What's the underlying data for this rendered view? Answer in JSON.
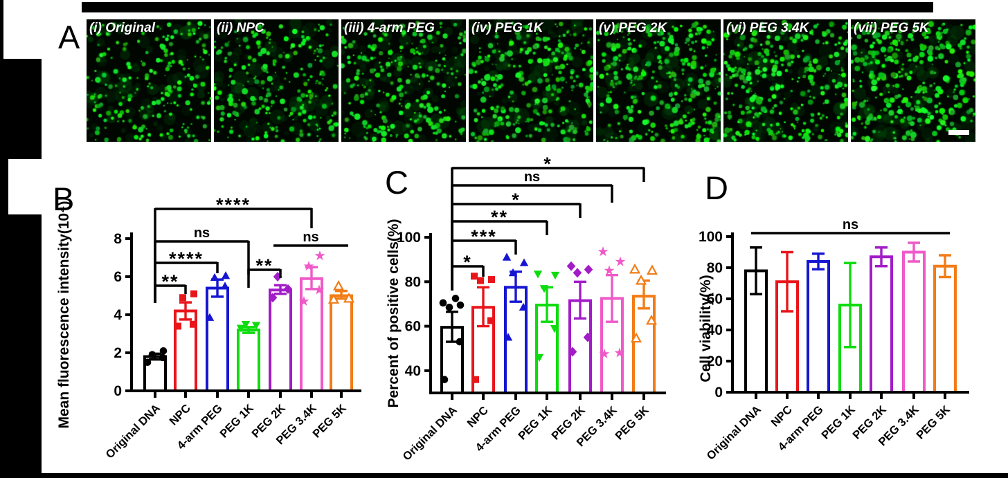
{
  "figure": {
    "panel_letters": {
      "a": "A",
      "b": "B",
      "c": "C",
      "d": "D"
    }
  },
  "panel_a": {
    "images": [
      {
        "label": "(i) Original"
      },
      {
        "label": "(ii) NPC"
      },
      {
        "label": "(iii) 4-arm PEG"
      },
      {
        "label": "(iv) PEG 1K"
      },
      {
        "label": "(v) PEG 2K"
      },
      {
        "label": "(vi) PEG 3.4K"
      },
      {
        "label": "(vii) PEG 5K"
      }
    ],
    "has_scale_bar": true
  },
  "chart_data": [
    {
      "id": "B",
      "type": "bar",
      "ylabel": "Mean fluorescence intensity(10⁴)",
      "categories": [
        "Original DNA",
        "NPC",
        "4-arm PEG",
        "PEG 1K",
        "PEG 2K",
        "PEG 3.4K",
        "PEG 5K"
      ],
      "values": [
        1.8,
        4.2,
        5.4,
        3.2,
        5.3,
        5.9,
        5.0
      ],
      "errors": [
        [
          1.65,
          1.95
        ],
        [
          3.75,
          4.65
        ],
        [
          4.95,
          5.85
        ],
        [
          3.05,
          3.35
        ],
        [
          5.1,
          5.55
        ],
        [
          5.35,
          6.5
        ],
        [
          4.85,
          5.25
        ]
      ],
      "points": [
        [
          1.5,
          1.75,
          1.9,
          2.1
        ],
        [
          3.4,
          3.5,
          4.9,
          5.1
        ],
        [
          3.85,
          5.5,
          5.95,
          6.05
        ],
        [
          3.3,
          3.45,
          3.5
        ],
        [
          4.9,
          5.35,
          6.0
        ],
        [
          4.7,
          5.3,
          6.55,
          7.1
        ],
        [
          4.8,
          4.85,
          5.5
        ]
      ],
      "colors": [
        "#000000",
        "#E8151B",
        "#1616D2",
        "#0EDC0E",
        "#A21CC7",
        "#EF5AC8",
        "#F27C16"
      ],
      "markers": [
        "circle",
        "square",
        "triangle-up",
        "triangle-down",
        "diamond",
        "star",
        "triangle-open"
      ],
      "ylim": [
        0,
        8
      ],
      "yticks": [
        0,
        2,
        4,
        6,
        8
      ],
      "significance": [
        {
          "a": 0,
          "b": 1,
          "label": "**"
        },
        {
          "a": 0,
          "b": 2,
          "label": "****"
        },
        {
          "a": 0,
          "b": 3,
          "label": "ns"
        },
        {
          "a": 0,
          "b": 5,
          "label": "****"
        },
        {
          "a": 3,
          "b": 4,
          "label": "**"
        },
        {
          "a": 4,
          "b": 6,
          "label": "ns"
        }
      ]
    },
    {
      "id": "C",
      "type": "bar",
      "ylabel": "Percent of positive cells(%)",
      "categories": [
        "Original DNA",
        "NPC",
        "4-arm PEG",
        "PEG 1K",
        "PEG 2K",
        "PEG 3.4K",
        "PEG 5K"
      ],
      "values": [
        59.5,
        68.5,
        77.5,
        69.5,
        71.5,
        72.5,
        73.5
      ],
      "errors": [
        [
          53,
          66.5
        ],
        [
          60,
          77.5
        ],
        [
          71,
          84.5
        ],
        [
          62,
          77.5
        ],
        [
          63.5,
          80
        ],
        [
          62,
          83
        ],
        [
          68,
          80.5
        ]
      ],
      "points": [
        [
          36,
          53,
          68.5,
          69.5,
          70.5,
          72.5
        ],
        [
          36,
          62.5,
          80.5,
          81,
          82.5
        ],
        [
          55,
          68.5,
          84,
          88.5,
          91
        ],
        [
          46,
          59,
          77,
          83,
          83.5
        ],
        [
          48.5,
          55,
          84,
          85.5,
          87
        ],
        [
          47.5,
          48,
          85,
          89,
          93.5
        ],
        [
          54.5,
          62.5,
          80.5,
          85,
          85.5
        ]
      ],
      "colors": [
        "#000000",
        "#E8151B",
        "#1616D2",
        "#0EDC0E",
        "#A21CC7",
        "#EF5AC8",
        "#F27C16"
      ],
      "markers": [
        "circle",
        "square",
        "triangle-up",
        "triangle-down",
        "diamond",
        "star",
        "triangle-open"
      ],
      "ylim": [
        30,
        100
      ],
      "yticks": [
        40,
        60,
        80,
        100
      ],
      "significance": [
        {
          "a": 0,
          "b": 1,
          "label": "*"
        },
        {
          "a": 0,
          "b": 2,
          "label": "***"
        },
        {
          "a": 0,
          "b": 3,
          "label": "**"
        },
        {
          "a": 0,
          "b": 4,
          "label": "*"
        },
        {
          "a": 0,
          "b": 5,
          "label": "ns"
        },
        {
          "a": 0,
          "b": 6,
          "label": "*"
        }
      ]
    },
    {
      "id": "D",
      "type": "bar",
      "ylabel": "Cell viability(%)",
      "categories": [
        "Original DNA",
        "NPC",
        "4-arm PEG",
        "PEG 1K",
        "PEG 2K",
        "PEG 3.4K",
        "PEG 5K"
      ],
      "values": [
        78,
        71,
        84,
        56,
        87,
        90,
        81
      ],
      "errors": [
        [
          63,
          93
        ],
        [
          52,
          90
        ],
        [
          79,
          89
        ],
        [
          29,
          83
        ],
        [
          81,
          93
        ],
        [
          84,
          96
        ],
        [
          74,
          88
        ]
      ],
      "points": [],
      "colors": [
        "#000000",
        "#E8151B",
        "#1616D2",
        "#0EDC0E",
        "#A21CC7",
        "#EF5AC8",
        "#F27C16"
      ],
      "markers": [],
      "ylim": [
        0,
        100
      ],
      "yticks": [
        0,
        20,
        40,
        60,
        80,
        100
      ],
      "significance": [
        {
          "a": 0,
          "b": 6,
          "label": "ns"
        }
      ]
    }
  ]
}
